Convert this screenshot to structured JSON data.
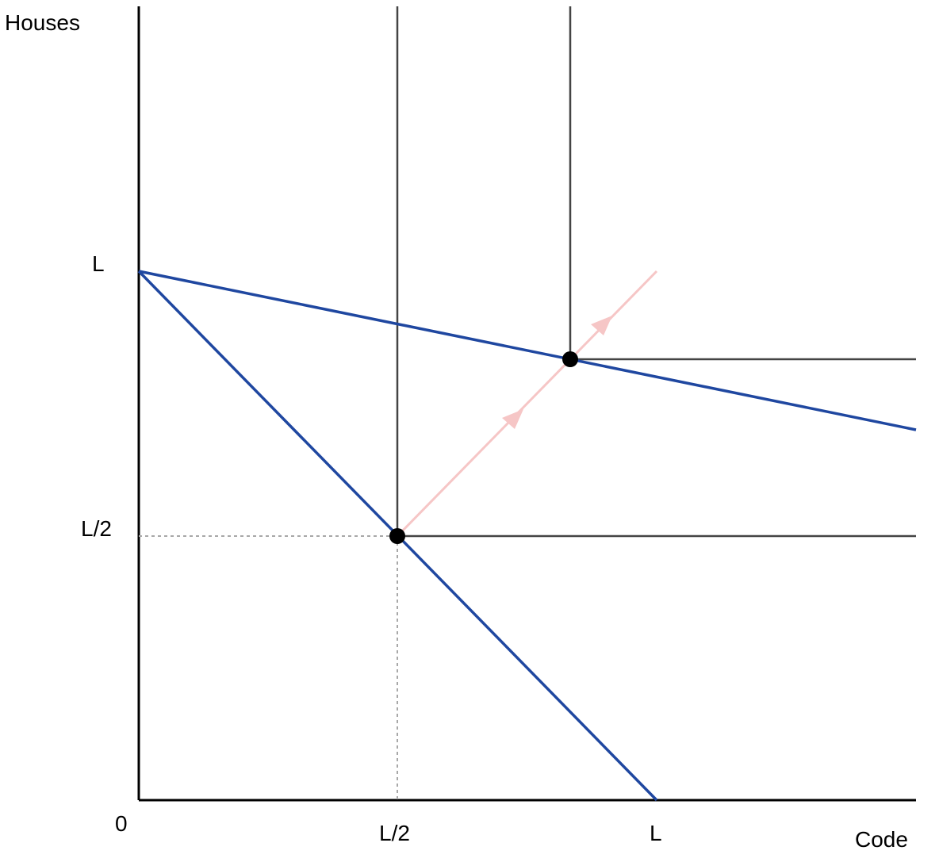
{
  "axes": {
    "y_label": "Houses",
    "x_label": "Code",
    "origin_label": "0",
    "x_ticks": [
      "L/2",
      "L"
    ],
    "y_ticks": [
      "L",
      "L/2"
    ]
  },
  "colors": {
    "axis": "#000000",
    "budget_line": "#1f47a0",
    "guide_line": "#444444",
    "dotted_guide": "#a8a8a8",
    "path_arrow": "#f6c6c6",
    "point": "#000000"
  },
  "icons": {
    "arrowheads": "triangle-arrow-icon",
    "points": "filled-circle-icon"
  }
}
